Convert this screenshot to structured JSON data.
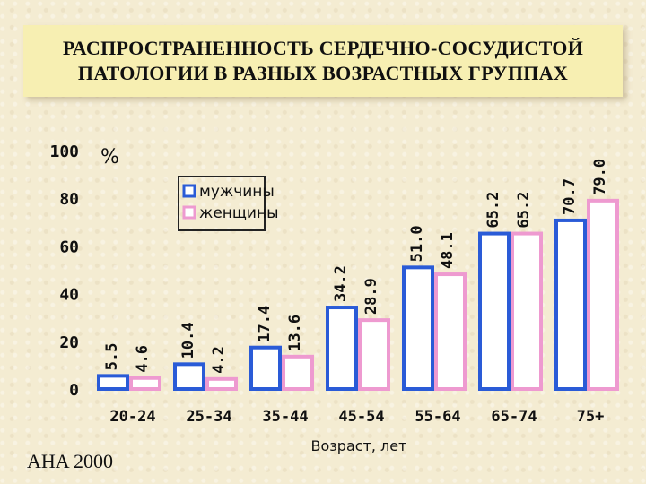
{
  "title": "РАСПРОСТРАНЕННОСТЬ СЕРДЕЧНО-СОСУДИСТОЙ\nПАТОЛОГИИ В РАЗНЫХ ВОЗРАСТНЫХ ГРУППАХ",
  "source": "AHA 2000",
  "colors": {
    "men": "#2a5bd7",
    "women": "#ee9ad0",
    "bar_fill": "#ffffff",
    "text": "#101010"
  },
  "chart_data": {
    "type": "bar",
    "categories": [
      "20-24",
      "25-34",
      "35-44",
      "45-54",
      "55-64",
      "65-74",
      "75+"
    ],
    "series": [
      {
        "name": "мужчины",
        "values": [
          5.5,
          10.4,
          17.4,
          34.2,
          51.0,
          65.2,
          70.7
        ],
        "labels": [
          "5.5",
          "10.4",
          "17.4",
          "34.2",
          "51.0",
          "65.2",
          "70.7"
        ]
      },
      {
        "name": "женщины",
        "values": [
          4.6,
          4.2,
          13.6,
          28.9,
          48.1,
          65.2,
          79.0
        ],
        "labels": [
          "4.6",
          "4.2",
          "13.6",
          "28.9",
          "48.1",
          "65.2",
          "79.0"
        ]
      }
    ],
    "xlabel": "Возраст, лет",
    "ylabel": "%",
    "ylim": [
      0,
      100
    ],
    "yticks": [
      0,
      20,
      40,
      60,
      80,
      100
    ],
    "legend": "top-center",
    "grid": false
  }
}
